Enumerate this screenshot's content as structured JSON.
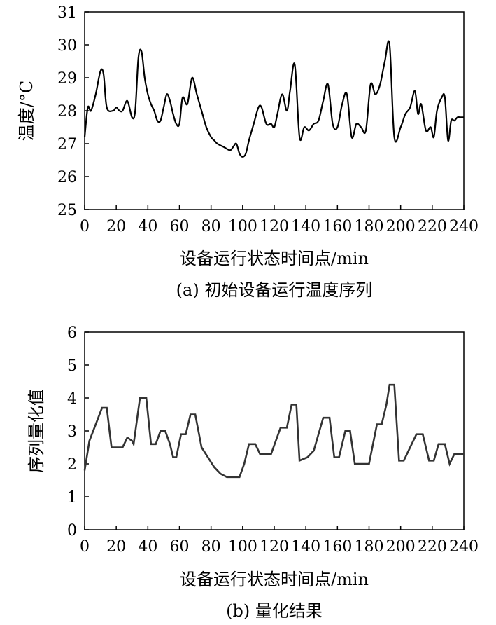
{
  "chart_data": [
    {
      "type": "line",
      "caption": "(a) 初始设备运行温度序列",
      "xlabel": "设备运行状态时间点/min",
      "ylabel": "温度/°C",
      "xlim": [
        0,
        240
      ],
      "ylim": [
        25,
        31
      ],
      "xticks": [
        0,
        20,
        40,
        60,
        80,
        100,
        120,
        140,
        160,
        180,
        200,
        220,
        240
      ],
      "yticks": [
        25,
        26,
        27,
        28,
        29,
        30,
        31
      ],
      "grid": false,
      "legend": "none",
      "line_color": "#000000",
      "smooth": true,
      "series": [
        {
          "x": [
            0,
            2,
            4,
            7,
            10,
            12,
            14,
            18,
            20,
            22,
            24,
            27,
            30,
            32,
            34,
            36,
            38,
            40,
            42,
            44,
            46,
            48,
            50,
            52,
            54,
            56,
            58,
            60,
            62,
            65,
            68,
            71,
            74,
            77,
            80,
            82,
            84,
            88,
            92,
            94,
            96,
            98,
            100,
            102,
            104,
            107,
            110,
            112,
            115,
            118,
            120,
            122,
            125,
            128,
            130,
            133,
            136,
            139,
            142,
            145,
            148,
            151,
            154,
            157,
            160,
            163,
            166,
            169,
            172,
            175,
            178,
            181,
            184,
            187,
            190,
            193,
            196,
            200,
            203,
            206,
            209,
            211,
            213,
            216,
            219,
            221,
            223,
            226,
            228,
            230,
            232,
            234,
            236,
            238,
            240
          ],
          "y": [
            27.2,
            28.1,
            28.0,
            28.5,
            29.2,
            29.1,
            28.1,
            28.0,
            28.1,
            28.0,
            28.0,
            28.3,
            27.8,
            28.0,
            29.6,
            29.8,
            29.0,
            28.5,
            28.2,
            28.0,
            27.7,
            27.7,
            28.1,
            28.5,
            28.3,
            27.9,
            27.6,
            27.6,
            28.4,
            28.2,
            29.0,
            28.5,
            28.0,
            27.5,
            27.2,
            27.1,
            27.0,
            26.9,
            26.8,
            26.9,
            27.0,
            26.7,
            26.6,
            26.7,
            27.1,
            27.6,
            28.1,
            28.1,
            27.6,
            27.6,
            27.5,
            27.9,
            28.5,
            28.0,
            28.6,
            29.4,
            27.2,
            27.5,
            27.4,
            27.6,
            27.7,
            28.3,
            28.8,
            27.6,
            27.5,
            28.2,
            28.5,
            27.2,
            27.6,
            27.5,
            27.4,
            28.8,
            28.5,
            28.8,
            29.5,
            30.0,
            27.2,
            27.5,
            27.9,
            28.1,
            28.6,
            27.9,
            28.2,
            27.4,
            27.5,
            27.2,
            28.0,
            28.4,
            28.4,
            27.1,
            27.7,
            27.7,
            27.8,
            27.8,
            27.8
          ]
        }
      ]
    },
    {
      "type": "line",
      "caption": "(b) 量化结果",
      "xlabel": "设备运行状态时间点/min",
      "ylabel": "序列量化值",
      "xlim": [
        0,
        240
      ],
      "ylim": [
        0,
        6
      ],
      "xticks": [
        0,
        20,
        40,
        60,
        80,
        100,
        120,
        140,
        160,
        180,
        200,
        220,
        240
      ],
      "yticks": [
        0,
        1,
        2,
        3,
        4,
        5,
        6
      ],
      "grid": false,
      "legend": "none",
      "line_color": "#333333",
      "smooth": false,
      "series": [
        {
          "x": [
            0,
            3,
            7,
            11,
            14,
            17,
            24,
            27,
            30,
            31,
            35,
            39,
            42,
            45,
            48,
            51,
            54,
            56,
            58,
            61,
            64,
            67,
            70,
            74,
            78,
            82,
            86,
            90,
            95,
            98,
            101,
            104,
            108,
            111,
            114,
            118,
            121,
            124,
            128,
            131,
            134,
            136,
            141,
            145,
            151,
            155,
            158,
            161,
            165,
            168,
            171,
            176,
            180,
            185,
            188,
            191,
            193,
            196,
            199,
            202,
            206,
            210,
            214,
            218,
            221,
            224,
            228,
            231,
            234,
            237,
            240
          ],
          "y": [
            1.8,
            2.7,
            3.2,
            3.7,
            3.7,
            2.5,
            2.5,
            2.8,
            2.7,
            2.6,
            4.0,
            4.0,
            2.6,
            2.6,
            3.0,
            3.0,
            2.6,
            2.2,
            2.2,
            2.9,
            2.9,
            3.5,
            3.5,
            2.5,
            2.2,
            1.9,
            1.7,
            1.6,
            1.6,
            1.6,
            2.0,
            2.6,
            2.6,
            2.3,
            2.3,
            2.3,
            2.7,
            3.1,
            3.1,
            3.8,
            3.8,
            2.1,
            2.2,
            2.4,
            3.4,
            3.4,
            2.2,
            2.2,
            3.0,
            3.0,
            2.0,
            2.0,
            2.0,
            3.2,
            3.2,
            3.8,
            4.4,
            4.4,
            2.1,
            2.1,
            2.5,
            2.9,
            2.9,
            2.1,
            2.1,
            2.6,
            2.6,
            2.0,
            2.3,
            2.3,
            2.3
          ]
        }
      ]
    }
  ]
}
